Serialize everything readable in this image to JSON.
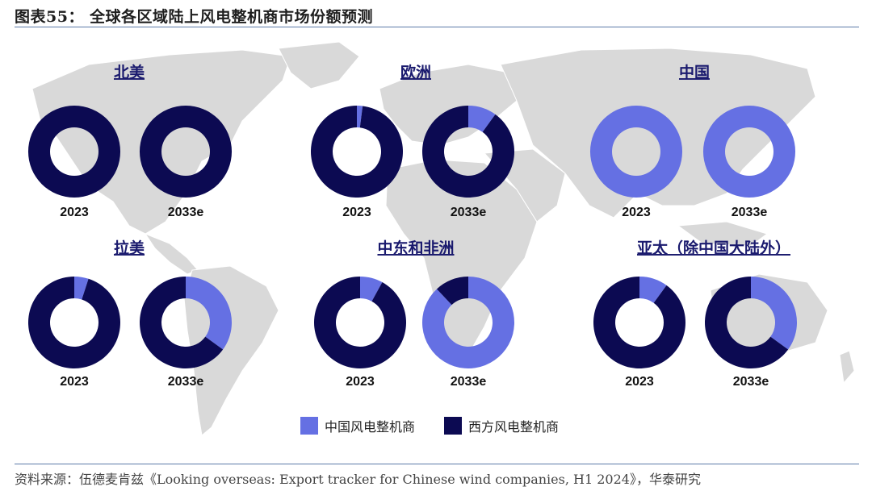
{
  "figure_title": "图表55： 全球各区域陆上风电整机商市场份额预测",
  "source": "资料来源：伍德麦肯兹《Looking overseas: Export tracker for Chinese wind companies, H1 2024》，华泰研究",
  "colors": {
    "chinese": "#6570e3",
    "western": "#0c0a52",
    "map": "#d9d9d9"
  },
  "legend": [
    {
      "label": "中国风电整机商",
      "color_key": "chinese"
    },
    {
      "label": "西方风电整机商",
      "color_key": "western"
    }
  ],
  "chart_data": {
    "type": "pie",
    "donut": true,
    "series_names": [
      "中国风电整机商",
      "西方风电整机商"
    ],
    "units": "share",
    "regions": [
      {
        "name": "北美",
        "years": [
          {
            "label": "2023",
            "chinese": 0.0,
            "western": 1.0
          },
          {
            "label": "2033e",
            "chinese": 0.0,
            "western": 1.0
          }
        ]
      },
      {
        "name": "欧洲",
        "years": [
          {
            "label": "2023",
            "chinese": 0.02,
            "western": 0.98
          },
          {
            "label": "2033e",
            "chinese": 0.1,
            "western": 0.9
          }
        ]
      },
      {
        "name": "中国",
        "years": [
          {
            "label": "2023",
            "chinese": 1.0,
            "western": 0.0
          },
          {
            "label": "2033e",
            "chinese": 1.0,
            "western": 0.0
          }
        ]
      },
      {
        "name": "拉美",
        "years": [
          {
            "label": "2023",
            "chinese": 0.05,
            "western": 0.95
          },
          {
            "label": "2033e",
            "chinese": 0.35,
            "western": 0.65
          }
        ]
      },
      {
        "name": "中东和非洲",
        "years": [
          {
            "label": "2023",
            "chinese": 0.08,
            "western": 0.92
          },
          {
            "label": "2033e",
            "chinese": 0.88,
            "western": 0.12
          }
        ]
      },
      {
        "name": "亚太（除中国大陆外）",
        "years": [
          {
            "label": "2023",
            "chinese": 0.1,
            "western": 0.9
          },
          {
            "label": "2033e",
            "chinese": 0.35,
            "western": 0.65
          }
        ]
      }
    ]
  }
}
